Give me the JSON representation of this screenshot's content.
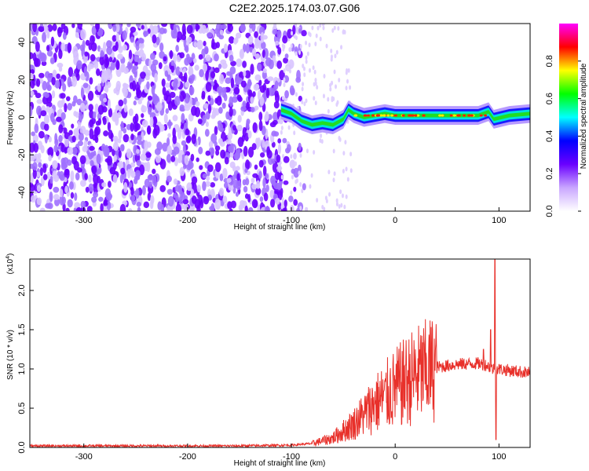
{
  "title": "C2E2.2025.174.03.07.G06",
  "chart_data": [
    {
      "type": "heatmap",
      "xlabel": "Height of straight line (km)",
      "ylabel": "Frequency (Hz)",
      "xlim": [
        -352,
        130
      ],
      "ylim": [
        -50,
        50
      ],
      "xticks": [
        -300,
        -200,
        -100,
        0,
        100
      ],
      "yticks": [
        -40,
        -20,
        0,
        20,
        40
      ],
      "colorbar": {
        "label": "Normalized spectral amplitude",
        "range": [
          0,
          1
        ],
        "ticks": [
          "0.0",
          "0.2",
          "0.4",
          "0.6",
          "0.8"
        ],
        "colormap": [
          "#ffffff",
          "#c9a6ff",
          "#6a00ff",
          "#0000ff",
          "#00ffff",
          "#00ff00",
          "#ffff00",
          "#ff0000",
          "#ff00ff"
        ]
      },
      "signal_track": [
        {
          "x": -110,
          "y": 4
        },
        {
          "x": -100,
          "y": 2
        },
        {
          "x": -90,
          "y": -2
        },
        {
          "x": -80,
          "y": -4
        },
        {
          "x": -70,
          "y": -3
        },
        {
          "x": -60,
          "y": -4
        },
        {
          "x": -50,
          "y": -1
        },
        {
          "x": -45,
          "y": 4
        },
        {
          "x": -40,
          "y": 2
        },
        {
          "x": -30,
          "y": 0
        },
        {
          "x": -20,
          "y": 1
        },
        {
          "x": -10,
          "y": 2
        },
        {
          "x": 0,
          "y": 1
        },
        {
          "x": 20,
          "y": 1
        },
        {
          "x": 50,
          "y": 1
        },
        {
          "x": 80,
          "y": 1
        },
        {
          "x": 90,
          "y": 3
        },
        {
          "x": 95,
          "y": -1
        },
        {
          "x": 110,
          "y": 1
        },
        {
          "x": 130,
          "y": 2
        }
      ],
      "noise_region": [
        -352,
        -110
      ]
    },
    {
      "type": "line",
      "xlabel": "Height of straight line (km)",
      "ylabel": "SNR (10 * v/v)",
      "yscale_label": "(x10",
      "yscale_exponent": "4",
      "line_color": "#e8302a",
      "xlim": [
        -352,
        130
      ],
      "ylim": [
        0,
        2.4
      ],
      "xticks": [
        -300,
        -200,
        -100,
        0,
        100
      ],
      "yticks": [
        "0.0",
        "0.5",
        "1.0",
        "1.5",
        "2.0"
      ],
      "envelope": [
        {
          "x": -352,
          "y": 0.02
        },
        {
          "x": -150,
          "y": 0.02
        },
        {
          "x": -100,
          "y": 0.03
        },
        {
          "x": -80,
          "y": 0.05
        },
        {
          "x": -60,
          "y": 0.12
        },
        {
          "x": -40,
          "y": 0.3
        },
        {
          "x": -20,
          "y": 0.55
        },
        {
          "x": 0,
          "y": 0.75
        },
        {
          "x": 20,
          "y": 0.92
        },
        {
          "x": 40,
          "y": 1.02
        },
        {
          "x": 60,
          "y": 1.06
        },
        {
          "x": 80,
          "y": 1.07
        },
        {
          "x": 88,
          "y": 1.05
        },
        {
          "x": 94,
          "y": 1.0
        },
        {
          "x": 100,
          "y": 1.0
        },
        {
          "x": 110,
          "y": 0.98
        },
        {
          "x": 130,
          "y": 0.95
        }
      ],
      "spikes": [
        {
          "x": -30,
          "y": 0.38
        },
        {
          "x": -20,
          "y": 0.55
        },
        {
          "x": -10,
          "y": 0.85
        },
        {
          "x": 10,
          "y": 1.05
        },
        {
          "x": 85,
          "y": 1.25
        },
        {
          "x": 92,
          "y": 1.5
        },
        {
          "x": 96,
          "y": 2.4
        },
        {
          "x": 97,
          "y": 0.1
        }
      ]
    }
  ]
}
